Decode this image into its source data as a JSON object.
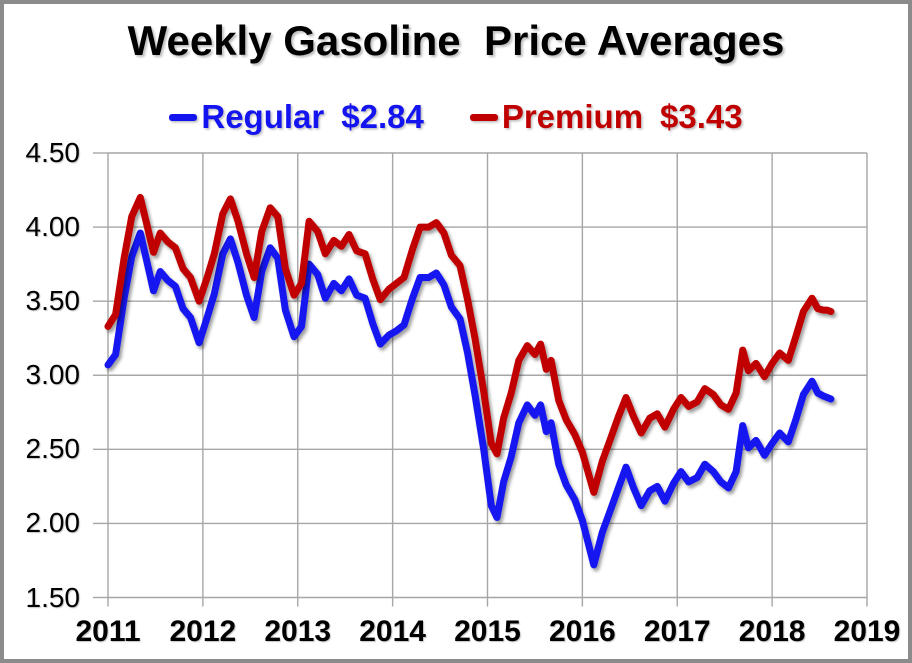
{
  "title": "Weekly Gasoline  Price Averages",
  "colors": {
    "regular": "#1414f0",
    "premium": "#c00000",
    "gridline": "#a6a6a6",
    "frame_border": "#8b8b8b",
    "background": "#ffffff",
    "text": "#000000"
  },
  "legend": {
    "items": [
      {
        "name": "Regular",
        "price": "$2.84",
        "color": "#1414f0"
      },
      {
        "name": "Premium",
        "price": "$3.43",
        "color": "#c00000"
      }
    ]
  },
  "chart_data": {
    "type": "line",
    "title": "Weekly Gasoline  Price Averages",
    "xlabel": "",
    "ylabel": "",
    "grid": true,
    "legend_position": "top",
    "xlim": [
      2011,
      2019
    ],
    "ylim": [
      1.5,
      4.5
    ],
    "y_ticks": [
      {
        "label": "4.50",
        "value": 4.5
      },
      {
        "label": "4.00",
        "value": 4.0
      },
      {
        "label": "3.50",
        "value": 3.5
      },
      {
        "label": "3.00",
        "value": 3.0
      },
      {
        "label": "2.50",
        "value": 2.5
      },
      {
        "label": "2.00",
        "value": 2.0
      },
      {
        "label": "1.50",
        "value": 1.5
      }
    ],
    "x_ticks": [
      {
        "label": "2011",
        "value": 2011
      },
      {
        "label": "2012",
        "value": 2012
      },
      {
        "label": "2013",
        "value": 2013
      },
      {
        "label": "2014",
        "value": 2014
      },
      {
        "label": "2015",
        "value": 2015
      },
      {
        "label": "2016",
        "value": 2016
      },
      {
        "label": "2017",
        "value": 2017
      },
      {
        "label": "2018",
        "value": 2018
      },
      {
        "label": "2019",
        "value": 2019
      }
    ],
    "x": [
      2011.0,
      2011.08,
      2011.17,
      2011.25,
      2011.34,
      2011.42,
      2011.48,
      2011.55,
      2011.63,
      2011.71,
      2011.79,
      2011.87,
      2011.96,
      2012.04,
      2012.12,
      2012.21,
      2012.29,
      2012.37,
      2012.46,
      2012.54,
      2012.62,
      2012.71,
      2012.79,
      2012.87,
      2012.96,
      2013.04,
      2013.12,
      2013.21,
      2013.29,
      2013.38,
      2013.46,
      2013.54,
      2013.62,
      2013.71,
      2013.79,
      2013.87,
      2013.96,
      2014.04,
      2014.12,
      2014.21,
      2014.29,
      2014.38,
      2014.46,
      2014.54,
      2014.62,
      2014.71,
      2014.79,
      2014.87,
      2014.96,
      2015.04,
      2015.1,
      2015.17,
      2015.25,
      2015.33,
      2015.42,
      2015.5,
      2015.56,
      2015.62,
      2015.67,
      2015.75,
      2015.83,
      2015.92,
      2016.0,
      2016.12,
      2016.21,
      2016.29,
      2016.38,
      2016.46,
      2016.54,
      2016.62,
      2016.71,
      2016.79,
      2016.87,
      2016.96,
      2017.04,
      2017.12,
      2017.21,
      2017.29,
      2017.38,
      2017.46,
      2017.54,
      2017.62,
      2017.69,
      2017.75,
      2017.83,
      2017.92,
      2018.0,
      2018.08,
      2018.17,
      2018.25,
      2018.33,
      2018.42,
      2018.48,
      2018.54,
      2018.58,
      2018.62
    ],
    "series": [
      {
        "name": "Regular",
        "legend_value": "$2.84",
        "color": "#1414f0",
        "values": [
          3.07,
          3.14,
          3.52,
          3.8,
          3.96,
          3.74,
          3.57,
          3.7,
          3.64,
          3.6,
          3.45,
          3.39,
          3.22,
          3.38,
          3.55,
          3.82,
          3.92,
          3.76,
          3.54,
          3.39,
          3.7,
          3.86,
          3.79,
          3.44,
          3.26,
          3.33,
          3.75,
          3.68,
          3.52,
          3.62,
          3.57,
          3.65,
          3.54,
          3.52,
          3.35,
          3.21,
          3.27,
          3.3,
          3.34,
          3.52,
          3.66,
          3.66,
          3.69,
          3.61,
          3.46,
          3.38,
          3.15,
          2.86,
          2.5,
          2.12,
          2.04,
          2.28,
          2.45,
          2.68,
          2.8,
          2.73,
          2.8,
          2.62,
          2.68,
          2.4,
          2.26,
          2.16,
          2.02,
          1.72,
          1.94,
          2.08,
          2.24,
          2.38,
          2.24,
          2.12,
          2.22,
          2.25,
          2.15,
          2.27,
          2.35,
          2.28,
          2.31,
          2.4,
          2.35,
          2.28,
          2.24,
          2.35,
          2.66,
          2.51,
          2.56,
          2.46,
          2.54,
          2.61,
          2.55,
          2.7,
          2.87,
          2.96,
          2.88,
          2.86,
          2.85,
          2.84
        ]
      },
      {
        "name": "Premium",
        "legend_value": "$3.43",
        "color": "#c00000",
        "values": [
          3.33,
          3.41,
          3.79,
          4.07,
          4.2,
          3.99,
          3.83,
          3.96,
          3.9,
          3.86,
          3.72,
          3.66,
          3.5,
          3.65,
          3.82,
          4.09,
          4.19,
          4.04,
          3.82,
          3.66,
          3.97,
          4.13,
          4.07,
          3.72,
          3.54,
          3.62,
          4.04,
          3.97,
          3.82,
          3.91,
          3.87,
          3.95,
          3.84,
          3.82,
          3.65,
          3.51,
          3.58,
          3.62,
          3.66,
          3.85,
          4.0,
          4.0,
          4.03,
          3.96,
          3.81,
          3.74,
          3.51,
          3.24,
          2.89,
          2.54,
          2.47,
          2.71,
          2.88,
          3.1,
          3.2,
          3.14,
          3.21,
          3.04,
          3.1,
          2.83,
          2.7,
          2.6,
          2.48,
          2.21,
          2.42,
          2.56,
          2.72,
          2.85,
          2.72,
          2.61,
          2.71,
          2.74,
          2.65,
          2.77,
          2.85,
          2.79,
          2.82,
          2.91,
          2.87,
          2.8,
          2.77,
          2.88,
          3.17,
          3.03,
          3.08,
          2.99,
          3.08,
          3.15,
          3.1,
          3.26,
          3.43,
          3.52,
          3.45,
          3.44,
          3.44,
          3.43
        ]
      }
    ]
  }
}
